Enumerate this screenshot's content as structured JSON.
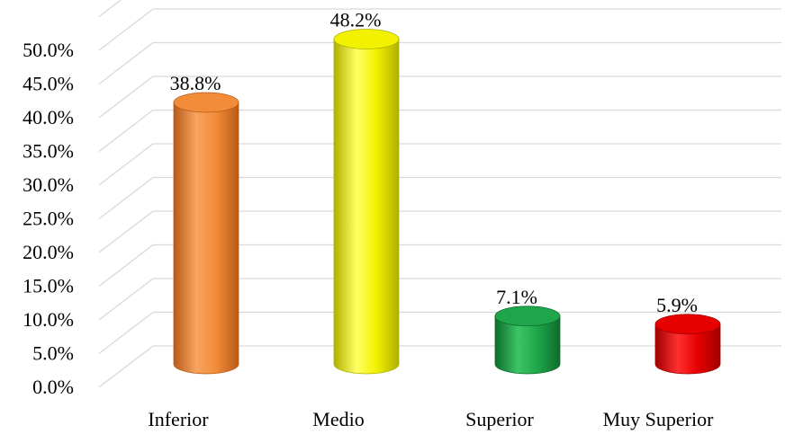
{
  "chart_data": {
    "type": "bar",
    "title": "",
    "xlabel": "",
    "ylabel": "",
    "categories": [
      "Inferior",
      "Medio",
      "Superior",
      "Muy Superior"
    ],
    "values": [
      38.8,
      48.2,
      7.1,
      5.9
    ],
    "data_labels": [
      "38.8%",
      "48.2%",
      "7.1%",
      "5.9%"
    ],
    "ylim": [
      0,
      55
    ],
    "yticks": [
      0,
      5,
      10,
      15,
      20,
      25,
      30,
      35,
      40,
      45,
      50
    ],
    "ytick_labels": [
      "0.0%",
      "5.0%",
      "10.0%",
      "15.0%",
      "20.0%",
      "25.0%",
      "30.0%",
      "35.0%",
      "40.0%",
      "45.0%",
      "50.0%"
    ],
    "grid": true,
    "legend": "none",
    "style": "3d-cylinder",
    "colors": [
      "#F28C38",
      "#F2F200",
      "#1FA64A",
      "#E60000"
    ],
    "dark_colors": [
      "#B85A1A",
      "#B0B000",
      "#0E6B2C",
      "#A00000"
    ],
    "light_colors": [
      "#F7A560",
      "#FFFF66",
      "#3CC465",
      "#FF3030"
    ]
  }
}
